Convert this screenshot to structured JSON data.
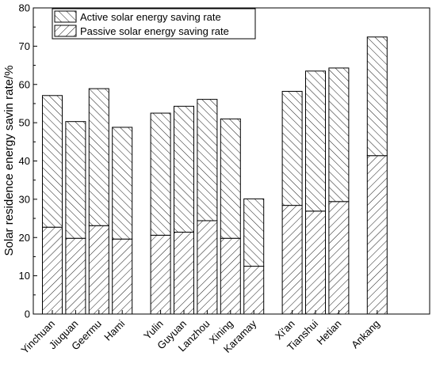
{
  "chart_data": {
    "type": "bar",
    "stacked": true,
    "categories": [
      "Yinchuan",
      "Jiuquan",
      "Geermu",
      "Hami",
      "Yulin",
      "Guyuan",
      "Lanzhou",
      "Xining",
      "Karamay",
      "Xi'an",
      "Tianshui",
      "Hetian",
      "Ankang"
    ],
    "groups": [
      [
        "Yinchuan",
        "Jiuquan",
        "Geermu",
        "Hami"
      ],
      [
        "Yulin",
        "Guyuan",
        "Lanzhou",
        "Xining",
        "Karamay"
      ],
      [
        "Xi'an",
        "Tianshui",
        "Hetian"
      ],
      [
        "Ankang"
      ]
    ],
    "series": [
      {
        "name": "Passive solar energy saving rate",
        "pattern": "forward-hatch",
        "values": [
          22.7,
          19.8,
          23.1,
          19.6,
          20.6,
          21.4,
          24.4,
          19.8,
          12.5,
          28.4,
          26.9,
          29.4,
          41.4
        ]
      },
      {
        "name": "Active solar energy saving rate",
        "pattern": "back-hatch",
        "values": [
          34.4,
          30.5,
          35.8,
          29.2,
          31.9,
          32.9,
          31.7,
          31.2,
          17.6,
          29.8,
          36.6,
          34.9,
          31.0
        ]
      }
    ],
    "totals": [
      57.1,
      50.3,
      58.9,
      48.8,
      52.5,
      54.3,
      56.1,
      51.0,
      30.1,
      58.2,
      63.5,
      64.3,
      72.4
    ],
    "title": "",
    "xlabel": "",
    "ylabel": "Solar residence energy savin rate/%",
    "ylim": [
      0,
      80
    ],
    "yticks": [
      0,
      10,
      20,
      30,
      40,
      50,
      60,
      70,
      80
    ],
    "legend_position": "top-left",
    "grid": false
  }
}
